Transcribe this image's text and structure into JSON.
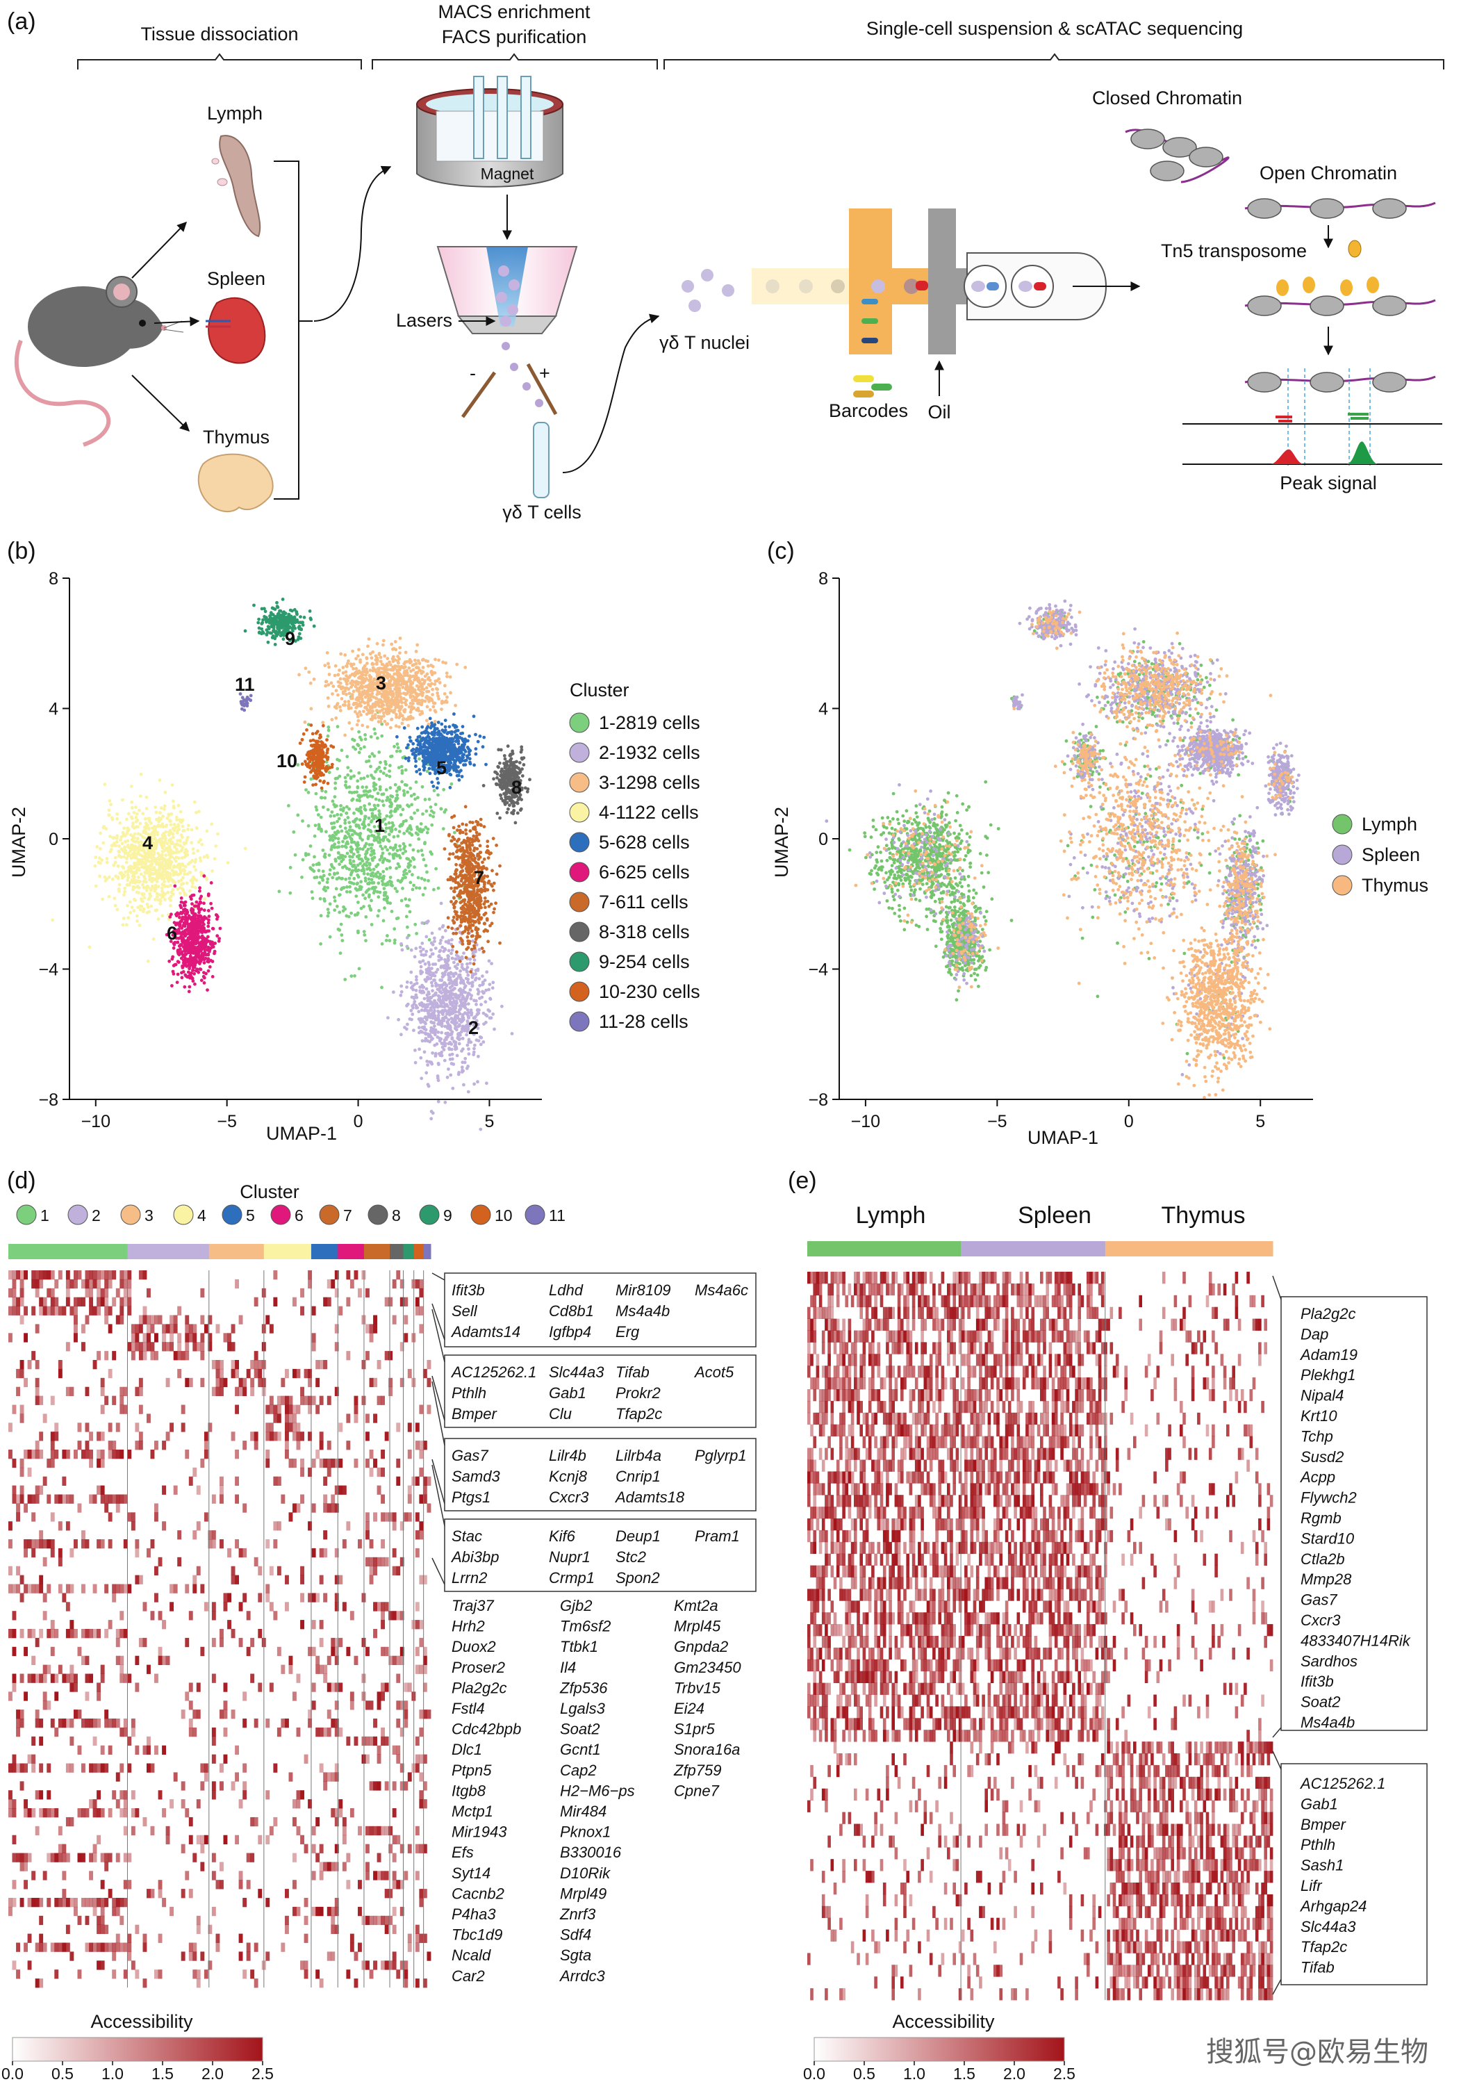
{
  "panel_a": {
    "label": "(a)",
    "header_tissue": "Tissue dissociation",
    "header_macs_1": "MACS enrichment",
    "header_macs_2": "FACS purification",
    "header_seq": "Single-cell suspension & scATAC sequencing",
    "lymph": "Lymph",
    "spleen": "Spleen",
    "thymus": "Thymus",
    "magnet": "Magnet",
    "lasers": "Lasers",
    "minus": "-",
    "plus": "+",
    "gd_t_cells": "γδ T cells",
    "gd_t_nuclei": "γδ T nuclei",
    "barcodes": "Barcodes",
    "oil": "Oil",
    "closed_chromatin": "Closed Chromatin",
    "open_chromatin": "Open Chromatin",
    "tn5": "Tn5 transposome",
    "peak_signal": "Peak signal"
  },
  "panel_b": {
    "label": "(b)",
    "xlabel": "UMAP-1",
    "ylabel": "UMAP-2",
    "legend_title": "Cluster",
    "legend": [
      "1-2819  cells",
      "2-1932  cells",
      "3-1298  cells",
      "4-1122  cells",
      "5-628  cells",
      "6-625  cells",
      "7-611  cells",
      "8-318  cells",
      "9-254  cells",
      "10-230  cells",
      "11-28  cells"
    ],
    "cluster_labels": [
      "1",
      "2",
      "3",
      "4",
      "5",
      "6",
      "7",
      "8",
      "9",
      "10",
      "11"
    ]
  },
  "panel_c": {
    "label": "(c)",
    "xlabel": "UMAP-1",
    "ylabel": "UMAP-2",
    "legend": [
      "Lymph",
      "Spleen",
      "Thymus"
    ]
  },
  "panel_d": {
    "label": "(d)",
    "legend_title": "Cluster",
    "cluster_names": [
      "1",
      "2",
      "3",
      "4",
      "5",
      "6",
      "7",
      "8",
      "9",
      "10",
      "11"
    ],
    "gene_boxes": [
      [
        [
          "Ifit3b",
          "Ldhd",
          "Mir8109",
          "Ms4a6c"
        ],
        [
          "Sell",
          "Cd8b1",
          "Ms4a4b",
          ""
        ],
        [
          "Adamts14",
          "Igfbp4",
          "Erg",
          ""
        ]
      ],
      [
        [
          "AC125262.1",
          "Slc44a3",
          "Tifab",
          "Acot5"
        ],
        [
          "Pthlh",
          "Gab1",
          "Prokr2",
          ""
        ],
        [
          "Bmper",
          "Clu",
          "Tfap2c",
          ""
        ]
      ],
      [
        [
          "Gas7",
          "Lilr4b",
          "Lilrb4a",
          "Pglyrp1"
        ],
        [
          "Samd3",
          "Kcnj8",
          "Cnrip1",
          ""
        ],
        [
          "Ptgs1",
          "Cxcr3",
          "Adamts18",
          ""
        ]
      ],
      [
        [
          "Stac",
          "Kif6",
          "Deup1",
          "Pram1"
        ],
        [
          "Abi3bp",
          "Nupr1",
          "Stc2",
          ""
        ],
        [
          "Lrrn2",
          "Crmp1",
          "Spon2",
          ""
        ]
      ]
    ],
    "big_box_col1": [
      "Traj37",
      "Hrh2",
      "Duox2",
      "Proser2",
      "Pla2g2c",
      "Fstl4",
      "Cdc42bpb",
      "Dlc1",
      "Ptpn5",
      "Itgb8",
      "Mctp1",
      "Mir1943",
      "Efs",
      "Syt14",
      "Cacnb2",
      "P4ha3",
      "Tbc1d9",
      "Ncald",
      "Car2"
    ],
    "big_box_col2": [
      "Gjb2",
      "Tm6sf2",
      "Ttbk1",
      "Il4",
      "Zfp536",
      "Lgals3",
      "Soat2",
      "Gcnt1",
      "Cap2",
      "H2−M6−ps",
      "Mir484",
      "Pknox1",
      "B330016",
      "D10Rik",
      "Mrpl49",
      "Znrf3",
      "Sdf4",
      "Sgta",
      "Arrdc3"
    ],
    "big_box_col3": [
      "Kmt2a",
      "Mrpl45",
      "Gnpda2",
      "Gm23450",
      "Trbv15",
      "Ei24",
      "S1pr5",
      "Snora16a",
      "Zfp759",
      "Cpne7"
    ],
    "accessibility": "Accessibility",
    "scale": [
      "0.0",
      "0.5",
      "1.0",
      "1.5",
      "2.0",
      "2.5"
    ]
  },
  "panel_e": {
    "label": "(e)",
    "groups": [
      "Lymph",
      "Spleen",
      "Thymus"
    ],
    "genes_top": [
      "Pla2g2c",
      "Dap",
      "Adam19",
      "Plekhg1",
      "Nipal4",
      "Krt10",
      "Tchp",
      "Susd2",
      "Acpp",
      "Flywch2",
      "Rgmb",
      "Stard10",
      "Ctla2b",
      "Mmp28",
      "Gas7",
      "Cxcr3",
      "4833407H14Rik",
      "Sardhos",
      "Ifit3b",
      "Soat2",
      "Ms4a4b"
    ],
    "genes_bottom": [
      "AC125262.1",
      "Gab1",
      "Bmper",
      "Pthlh",
      "Sash1",
      "Lifr",
      "Arhgap24",
      "Slc44a3",
      "Tfap2c",
      "Tifab"
    ],
    "accessibility": "Accessibility",
    "scale": [
      "0.0",
      "0.5",
      "1.0",
      "1.5",
      "2.0",
      "2.5"
    ]
  },
  "watermark": "搜狐号@欧易生物",
  "chart_data": [
    {
      "type": "scatter",
      "panel": "b",
      "xlabel": "UMAP-1",
      "ylabel": "UMAP-2",
      "xlim": [
        -11,
        7
      ],
      "ylim": [
        -8,
        8
      ],
      "xticks": [
        -10,
        -5,
        0,
        5
      ],
      "yticks": [
        -8,
        -4,
        0,
        4,
        8
      ],
      "legend_title": "Cluster",
      "legend_position": "right",
      "series": [
        {
          "name": "1-2819  cells",
          "color": "#7ccf7c",
          "n": 2819,
          "center": [
            0.5,
            0.0
          ],
          "spread": [
            2.0,
            2.4
          ]
        },
        {
          "name": "2-1932  cells",
          "color": "#bfb0dc",
          "n": 1932,
          "center": [
            3.4,
            -5.0
          ],
          "spread": [
            1.2,
            1.7
          ]
        },
        {
          "name": "3-1298  cells",
          "color": "#f6bd86",
          "n": 1298,
          "center": [
            1.0,
            4.6
          ],
          "spread": [
            1.7,
            0.9
          ]
        },
        {
          "name": "4-1122  cells",
          "color": "#f9f3a3",
          "n": 1122,
          "center": [
            -7.8,
            -0.6
          ],
          "spread": [
            1.5,
            1.3
          ]
        },
        {
          "name": "5-628  cells",
          "color": "#2d6fbd",
          "n": 628,
          "center": [
            3.2,
            2.7
          ],
          "spread": [
            0.9,
            0.6
          ]
        },
        {
          "name": "6-625  cells",
          "color": "#e0187b",
          "n": 625,
          "center": [
            -6.3,
            -3.1
          ],
          "spread": [
            0.6,
            1.0
          ]
        },
        {
          "name": "7-611  cells",
          "color": "#c96a2b",
          "n": 611,
          "center": [
            4.3,
            -1.5
          ],
          "spread": [
            0.6,
            1.5
          ]
        },
        {
          "name": "8-318  cells",
          "color": "#666666",
          "n": 318,
          "center": [
            5.8,
            1.8
          ],
          "spread": [
            0.4,
            0.7
          ]
        },
        {
          "name": "9-254  cells",
          "color": "#2c9a6c",
          "n": 254,
          "center": [
            -2.9,
            6.6
          ],
          "spread": [
            0.7,
            0.4
          ]
        },
        {
          "name": "10-230  cells",
          "color": "#d2621e",
          "n": 230,
          "center": [
            -1.6,
            2.5
          ],
          "spread": [
            0.4,
            0.6
          ]
        },
        {
          "name": "11-28  cells",
          "color": "#7d76bc",
          "n": 28,
          "center": [
            -4.3,
            4.2
          ],
          "spread": [
            0.2,
            0.2
          ]
        }
      ]
    },
    {
      "type": "scatter",
      "panel": "c",
      "xlabel": "UMAP-1",
      "ylabel": "UMAP-2",
      "xlim": [
        -11,
        7
      ],
      "ylim": [
        -8,
        8
      ],
      "xticks": [
        -10,
        -5,
        0,
        5
      ],
      "yticks": [
        -8,
        -4,
        0,
        4,
        8
      ],
      "legend_position": "right",
      "series": [
        {
          "name": "Lymph",
          "color": "#74c46b"
        },
        {
          "name": "Spleen",
          "color": "#b8a8d8"
        },
        {
          "name": "Thymus",
          "color": "#f7b97f"
        }
      ]
    },
    {
      "type": "heatmap",
      "panel": "d",
      "legend_title": "Accessibility",
      "scale_range": [
        0.0,
        2.5
      ],
      "column_groups": [
        "1",
        "2",
        "3",
        "4",
        "5",
        "6",
        "7",
        "8",
        "9",
        "10",
        "11"
      ]
    },
    {
      "type": "heatmap",
      "panel": "e",
      "legend_title": "Accessibility",
      "scale_range": [
        0.0,
        2.5
      ],
      "column_groups": [
        "Lymph",
        "Spleen",
        "Thymus"
      ]
    }
  ],
  "colors": {
    "c1": "#7ccf7c",
    "c2": "#bfb0dc",
    "c3": "#f6bd86",
    "c4": "#f9f3a3",
    "c5": "#2d6fbd",
    "c6": "#e0187b",
    "c7": "#c96a2b",
    "c8": "#666666",
    "c9": "#2c9a6c",
    "c10": "#d2621e",
    "c11": "#7d76bc",
    "heat_high": "#a3141a"
  }
}
